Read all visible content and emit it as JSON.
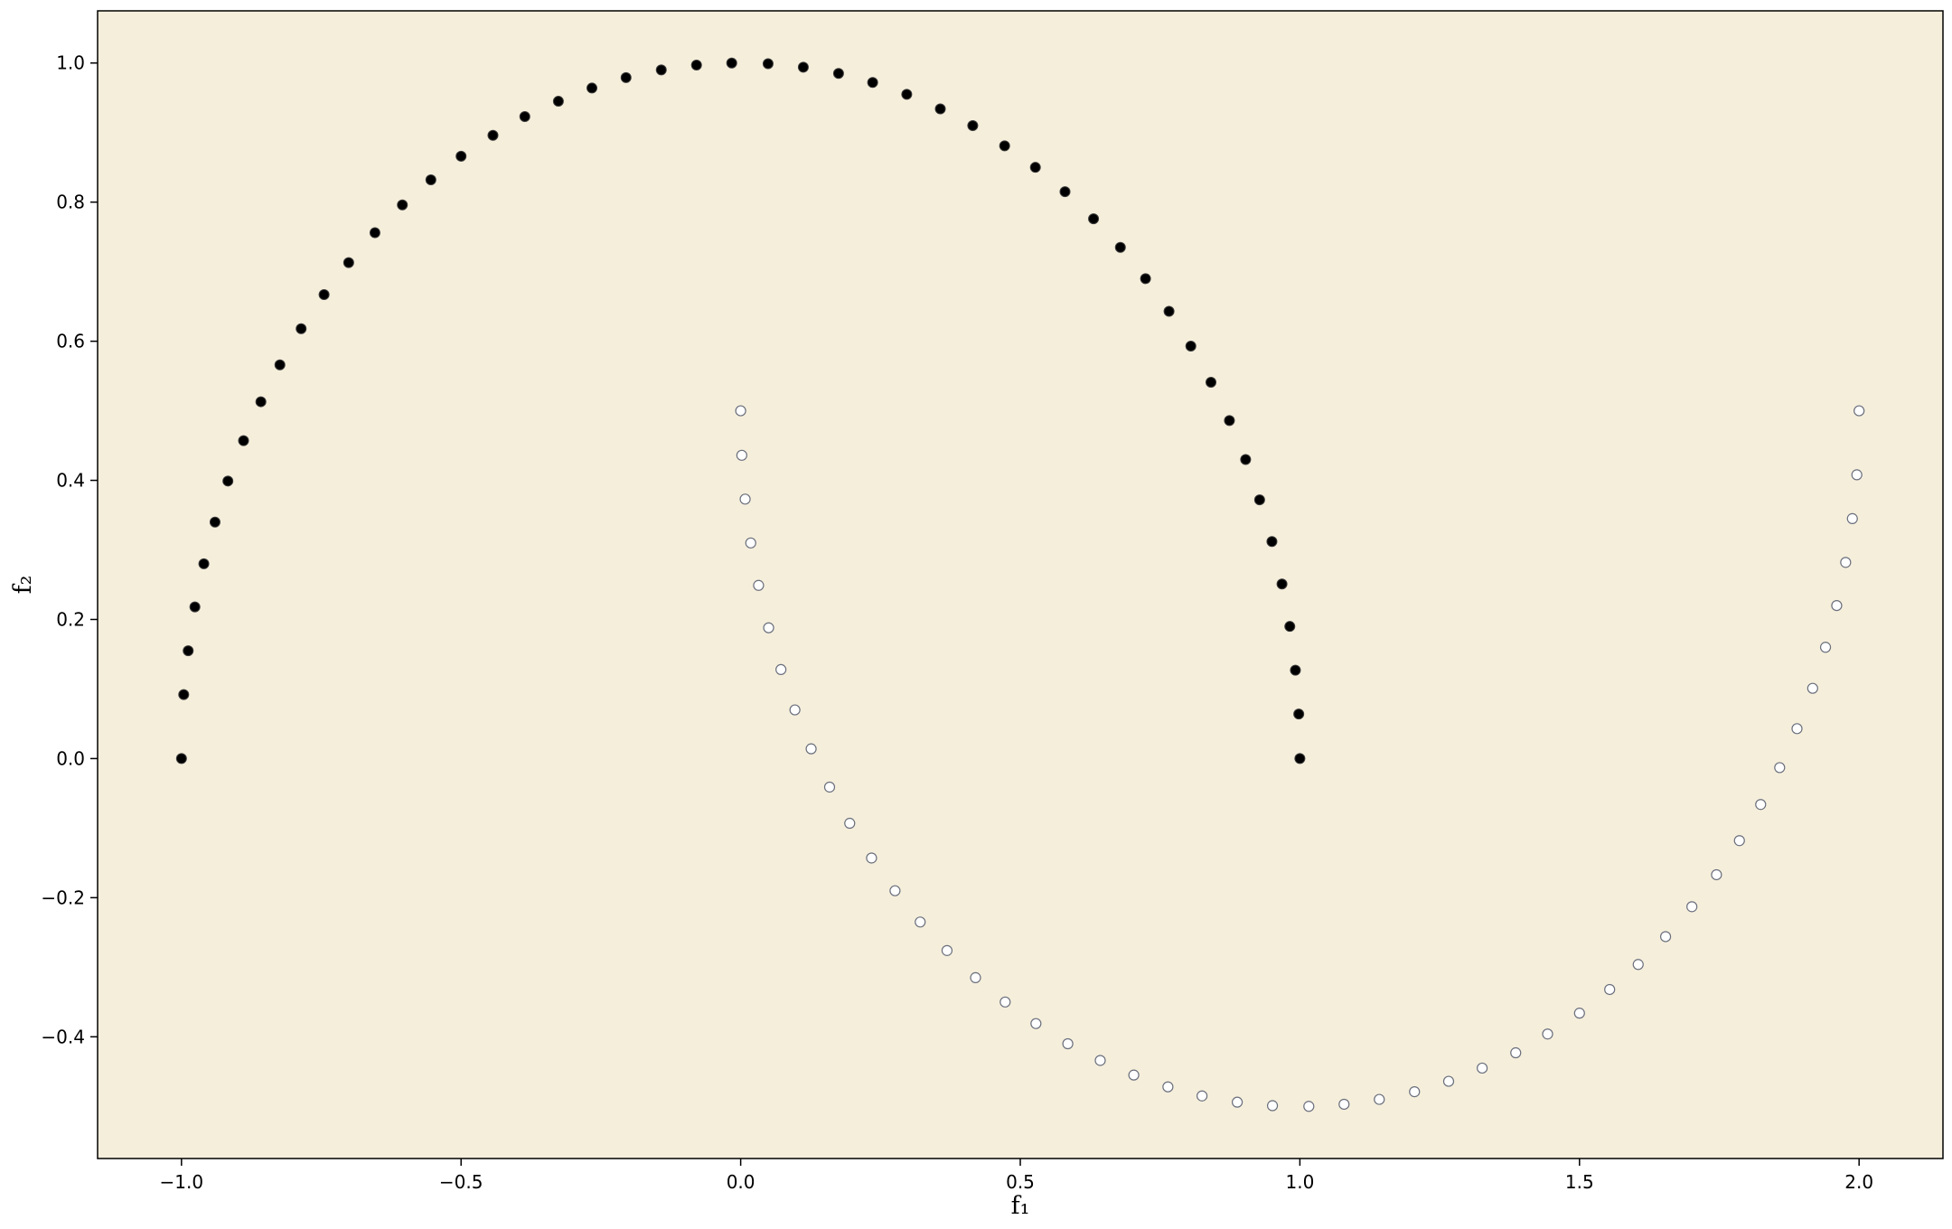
{
  "chart_data": {
    "type": "scatter",
    "title": "",
    "xlabel": "f₁",
    "ylabel": "f₂",
    "xlim": [
      -1.15,
      2.15
    ],
    "ylim": [
      -0.575,
      1.075
    ],
    "x_ticks": [
      -1.0,
      -0.5,
      0.0,
      0.5,
      1.0,
      1.5,
      2.0
    ],
    "y_ticks": [
      -0.4,
      -0.2,
      0.0,
      0.2,
      0.4,
      0.6,
      0.8,
      1.0
    ],
    "x_tick_labels": [
      "−1.0",
      "−0.5",
      "0.0",
      "0.5",
      "1.0",
      "1.5",
      "2.0"
    ],
    "y_tick_labels": [
      "−0.4",
      "−0.2",
      "0.0",
      "0.2",
      "0.4",
      "0.6",
      "0.8",
      "1.0"
    ],
    "grid": false,
    "legend": "none",
    "background_color": "#f5eedb",
    "series": [
      {
        "marker": "filled",
        "color": "#000000",
        "points": [
          [
            1.0,
            0.0
          ],
          [
            0.998,
            0.064
          ],
          [
            0.992,
            0.127
          ],
          [
            0.982,
            0.19
          ],
          [
            0.968,
            0.251
          ],
          [
            0.95,
            0.312
          ],
          [
            0.928,
            0.372
          ],
          [
            0.903,
            0.43
          ],
          [
            0.874,
            0.486
          ],
          [
            0.841,
            0.541
          ],
          [
            0.805,
            0.593
          ],
          [
            0.766,
            0.643
          ],
          [
            0.724,
            0.69
          ],
          [
            0.679,
            0.735
          ],
          [
            0.631,
            0.776
          ],
          [
            0.58,
            0.815
          ],
          [
            0.527,
            0.85
          ],
          [
            0.472,
            0.881
          ],
          [
            0.415,
            0.91
          ],
          [
            0.357,
            0.934
          ],
          [
            0.297,
            0.955
          ],
          [
            0.236,
            0.972
          ],
          [
            0.175,
            0.985
          ],
          [
            0.112,
            0.994
          ],
          [
            0.049,
            0.999
          ],
          [
            -0.016,
            1.0
          ],
          [
            -0.079,
            0.997
          ],
          [
            -0.142,
            0.99
          ],
          [
            -0.205,
            0.979
          ],
          [
            -0.266,
            0.964
          ],
          [
            -0.326,
            0.945
          ],
          [
            -0.386,
            0.923
          ],
          [
            -0.443,
            0.896
          ],
          [
            -0.5,
            0.866
          ],
          [
            -0.554,
            0.832
          ],
          [
            -0.605,
            0.796
          ],
          [
            -0.654,
            0.756
          ],
          [
            -0.701,
            0.713
          ],
          [
            -0.745,
            0.667
          ],
          [
            -0.786,
            0.618
          ],
          [
            -0.824,
            0.566
          ],
          [
            -0.858,
            0.513
          ],
          [
            -0.889,
            0.457
          ],
          [
            -0.917,
            0.399
          ],
          [
            -0.94,
            0.34
          ],
          [
            -0.96,
            0.28
          ],
          [
            -0.976,
            0.218
          ],
          [
            -0.988,
            0.155
          ],
          [
            -0.996,
            0.092
          ],
          [
            -1.0,
            0.0
          ]
        ]
      },
      {
        "marker": "hollow",
        "color": "#ffffff",
        "edge_color": "#6a6f7c",
        "points": [
          [
            0.0,
            0.5
          ],
          [
            0.002,
            0.436
          ],
          [
            0.008,
            0.373
          ],
          [
            0.018,
            0.31
          ],
          [
            0.032,
            0.249
          ],
          [
            0.05,
            0.188
          ],
          [
            0.072,
            0.128
          ],
          [
            0.097,
            0.07
          ],
          [
            0.126,
            0.014
          ],
          [
            0.159,
            -0.041
          ],
          [
            0.195,
            -0.093
          ],
          [
            0.234,
            -0.143
          ],
          [
            0.276,
            -0.19
          ],
          [
            0.321,
            -0.235
          ],
          [
            0.369,
            -0.276
          ],
          [
            0.42,
            -0.315
          ],
          [
            0.473,
            -0.35
          ],
          [
            0.528,
            -0.381
          ],
          [
            0.585,
            -0.41
          ],
          [
            0.643,
            -0.434
          ],
          [
            0.703,
            -0.455
          ],
          [
            0.764,
            -0.472
          ],
          [
            0.825,
            -0.485
          ],
          [
            0.888,
            -0.494
          ],
          [
            0.951,
            -0.499
          ],
          [
            1.016,
            -0.5
          ],
          [
            1.079,
            -0.497
          ],
          [
            1.142,
            -0.49
          ],
          [
            1.205,
            -0.479
          ],
          [
            1.266,
            -0.464
          ],
          [
            1.326,
            -0.445
          ],
          [
            1.386,
            -0.423
          ],
          [
            1.443,
            -0.396
          ],
          [
            1.5,
            -0.366
          ],
          [
            1.554,
            -0.332
          ],
          [
            1.605,
            -0.296
          ],
          [
            1.654,
            -0.256
          ],
          [
            1.701,
            -0.213
          ],
          [
            1.745,
            -0.167
          ],
          [
            1.786,
            -0.118
          ],
          [
            1.824,
            -0.066
          ],
          [
            1.858,
            -0.013
          ],
          [
            1.889,
            0.043
          ],
          [
            1.917,
            0.101
          ],
          [
            1.94,
            0.16
          ],
          [
            1.96,
            0.22
          ],
          [
            1.976,
            0.282
          ],
          [
            1.988,
            0.345
          ],
          [
            1.996,
            0.408
          ],
          [
            2.0,
            0.5
          ]
        ]
      }
    ]
  }
}
